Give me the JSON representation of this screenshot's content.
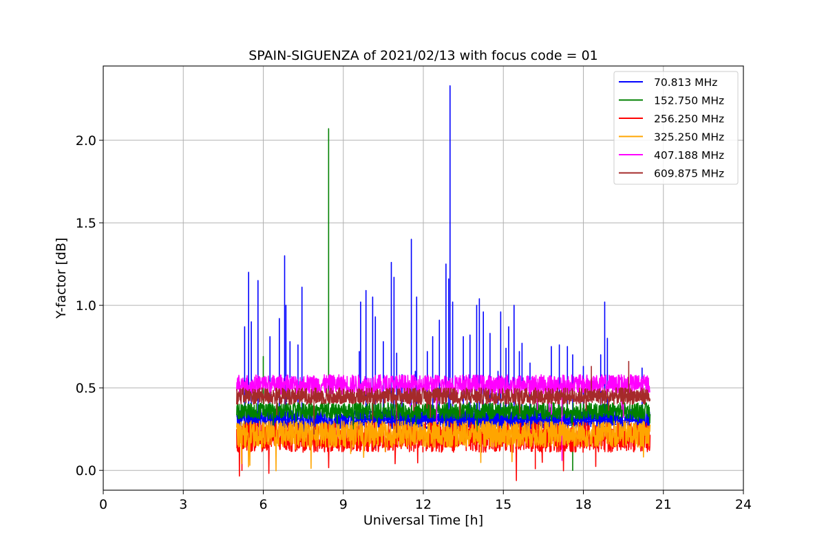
{
  "chart_data": {
    "type": "line",
    "title": "SPAIN-SIGUENZA of 2021/02/13 with focus code = 01",
    "xlabel": "Universal Time [h]",
    "ylabel": "Y-factor [dB]",
    "xlim": [
      0,
      24
    ],
    "ylim": [
      -0.12,
      2.45
    ],
    "xticks": [
      0,
      3,
      6,
      9,
      12,
      15,
      18,
      21,
      24
    ],
    "xtick_labels": [
      "0",
      "3",
      "6",
      "9",
      "12",
      "15",
      "18",
      "21",
      "24"
    ],
    "yticks": [
      0.0,
      0.5,
      1.0,
      1.5,
      2.0
    ],
    "ytick_labels": [
      "0.0",
      "0.5",
      "1.0",
      "1.5",
      "2.0"
    ],
    "grid": true,
    "legend_position": "top-right",
    "time_range": [
      5.0,
      20.5
    ],
    "series": [
      {
        "name": " 70.813 MHz",
        "color": "#0000ff",
        "base": 0.31,
        "spread": 0.06,
        "peaks": [
          [
            5.3,
            0.87
          ],
          [
            5.45,
            1.2
          ],
          [
            5.55,
            0.9
          ],
          [
            5.8,
            1.15
          ],
          [
            6.25,
            0.81
          ],
          [
            6.6,
            0.92
          ],
          [
            6.8,
            1.3
          ],
          [
            6.85,
            1.0
          ],
          [
            7.0,
            0.78
          ],
          [
            7.3,
            0.76
          ],
          [
            7.45,
            1.11
          ],
          [
            9.6,
            0.72
          ],
          [
            9.65,
            1.02
          ],
          [
            9.85,
            1.09
          ],
          [
            10.1,
            1.05
          ],
          [
            10.2,
            0.93
          ],
          [
            10.5,
            0.78
          ],
          [
            10.8,
            1.26
          ],
          [
            10.9,
            1.17
          ],
          [
            11.0,
            0.71
          ],
          [
            11.2,
            0.58
          ],
          [
            11.55,
            1.4
          ],
          [
            11.7,
            0.6
          ],
          [
            11.75,
            1.05
          ],
          [
            12.15,
            0.72
          ],
          [
            12.35,
            0.81
          ],
          [
            12.6,
            0.91
          ],
          [
            12.85,
            1.25
          ],
          [
            12.95,
            1.16
          ],
          [
            13.0,
            2.33
          ],
          [
            13.1,
            1.02
          ],
          [
            13.5,
            0.81
          ],
          [
            13.75,
            0.82
          ],
          [
            14.0,
            1.0
          ],
          [
            14.1,
            1.04
          ],
          [
            14.25,
            0.96
          ],
          [
            14.5,
            0.83
          ],
          [
            14.8,
            0.6
          ],
          [
            14.9,
            0.96
          ],
          [
            15.1,
            0.74
          ],
          [
            15.2,
            0.87
          ],
          [
            15.4,
            1.0
          ],
          [
            15.6,
            0.72
          ],
          [
            15.7,
            0.77
          ],
          [
            16.0,
            0.65
          ],
          [
            16.8,
            0.75
          ],
          [
            17.1,
            0.76
          ],
          [
            17.4,
            0.75
          ],
          [
            17.6,
            0.7
          ],
          [
            18.0,
            0.63
          ],
          [
            18.65,
            0.7
          ],
          [
            18.8,
            1.02
          ],
          [
            18.9,
            0.8
          ],
          [
            20.2,
            0.62
          ]
        ]
      },
      {
        "name": "152.750 MHz",
        "color": "#008000",
        "base": 0.36,
        "spread": 0.05,
        "peaks": [
          [
            8.45,
            2.07
          ],
          [
            6.0,
            0.69
          ],
          [
            17.6,
            0.0
          ]
        ]
      },
      {
        "name": "256.250 MHz",
        "color": "#ff0000",
        "base": 0.2,
        "spread": 0.09,
        "peaks": [
          [
            5.2,
            0.0
          ],
          [
            11.0,
            0.36
          ],
          [
            16.2,
            0.01
          ]
        ]
      },
      {
        "name": "325.250 MHz",
        "color": "#ffa500",
        "base": 0.22,
        "spread": 0.08,
        "peaks": []
      },
      {
        "name": "407.188 MHz",
        "color": "#ff00ff",
        "base": 0.52,
        "spread": 0.06,
        "peaks": [
          [
            12.5,
            0.29
          ],
          [
            14.9,
            0.47
          ],
          [
            16.8,
            0.34
          ],
          [
            17.2,
            0.06
          ],
          [
            19.5,
            0.32
          ]
        ]
      },
      {
        "name": "609.875 MHz",
        "color": "#a52a2a",
        "base": 0.45,
        "spread": 0.05,
        "peaks": [
          [
            7.9,
            0.22
          ],
          [
            10.1,
            0.28
          ],
          [
            11.0,
            0.23
          ],
          [
            19.7,
            0.66
          ],
          [
            18.3,
            0.63
          ]
        ]
      }
    ]
  }
}
